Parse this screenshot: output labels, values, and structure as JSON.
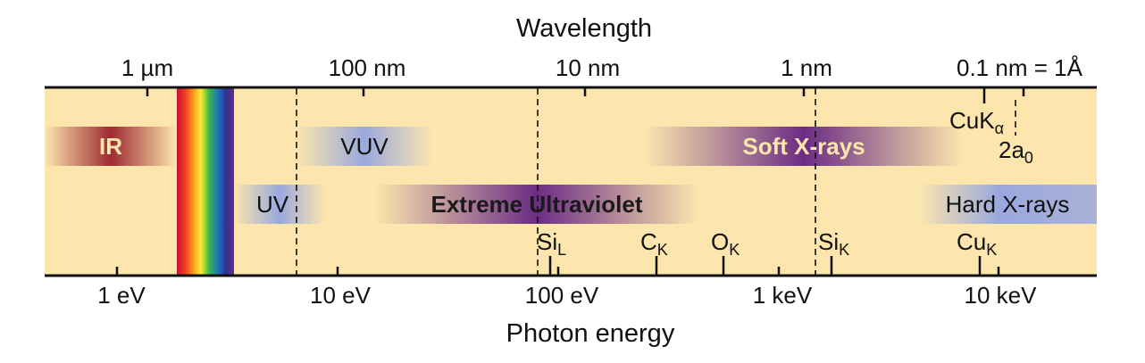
{
  "axes": {
    "top_title": "Wavelength",
    "bottom_title": "Photon energy",
    "top_ticks": [
      "1 µm",
      "100 nm",
      "10 nm",
      "1 nm",
      "0.1 nm = 1Å"
    ],
    "bottom_ticks": [
      "1 eV",
      "10 eV",
      "100 eV",
      "1 keV",
      "10 keV"
    ]
  },
  "bands": {
    "ir": "IR",
    "vuv": "VUV",
    "uv": "UV",
    "euv": "Extreme Ultraviolet",
    "soft_xray": "Soft X-rays",
    "hard_xray": "Hard X-rays"
  },
  "edges": {
    "si_l": {
      "base": "Si",
      "sub": "L"
    },
    "c_k": {
      "base": "C",
      "sub": "K"
    },
    "o_k": {
      "base": "O",
      "sub": "K"
    },
    "si_k": {
      "base": "Si",
      "sub": "K"
    },
    "cu_k": {
      "base": "Cu",
      "sub": "K"
    },
    "cuka": {
      "base": "CuK",
      "sub": "α"
    },
    "bohr": {
      "base": "2a",
      "sub": "0"
    }
  },
  "colors": {
    "background": "#fce6ad",
    "ir": "#9e2a33",
    "vuv_uv_hard": "#9aa8de",
    "euv_soft": "#6b2c84",
    "soft_text": "#fce6ad"
  }
}
